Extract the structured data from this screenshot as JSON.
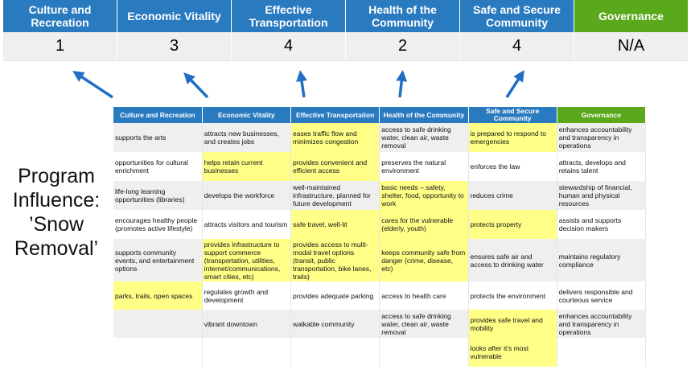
{
  "categories": [
    {
      "label": "Culture and Recreation",
      "score": "1"
    },
    {
      "label": "Economic Vitality",
      "score": "3"
    },
    {
      "label": "Effective Transportation",
      "score": "4"
    },
    {
      "label": "Health of the Community",
      "score": "2"
    },
    {
      "label": "Safe and Secure Community",
      "score": "4"
    },
    {
      "label": "Governance",
      "score": "N/A"
    }
  ],
  "side_title": {
    "line1": "Program",
    "line2": "Influence:",
    "line3": "’Snow",
    "line4": "Removal’"
  },
  "colors": {
    "header_blue": "#2a7ac0",
    "governance_green": "#5aa81c",
    "highlight_yellow": "#ffff88",
    "arrow_blue": "#1f6fc5"
  },
  "table": {
    "headers": [
      "Culture and Recreation",
      "Economic Vitality",
      "Effective Transportation",
      "Health of the Community",
      "Safe and Secure Community",
      "Governance"
    ],
    "rows": [
      {
        "cells": [
          "supports the arts",
          "attracts new businesses, and creates jobs",
          "eases traffic flow and minimizes congestion",
          "access to safe drinking water, clean air, waste removal",
          "is prepared to respond to emergencies",
          "enhances accountability and transparency in operations"
        ],
        "highlighted": [
          false,
          false,
          true,
          false,
          true,
          false
        ]
      },
      {
        "cells": [
          "opportunities for cultural enrichment",
          "helps retain current businesses",
          "provides convenient and efficient access",
          "preserves the natural environment",
          "enforces the law",
          "attracts, develops and retains talent"
        ],
        "highlighted": [
          false,
          true,
          true,
          false,
          false,
          false
        ]
      },
      {
        "cells": [
          "life-long learning opportunities (libraries)",
          "develops the workforce",
          "well-maintained infrastructure, planned for future development",
          "basic needs – safety, shelter, food, opportunity to work",
          "reduces crime",
          "stewardship of financial, human and physical resources"
        ],
        "highlighted": [
          false,
          false,
          false,
          true,
          false,
          false
        ]
      },
      {
        "cells": [
          "encourages healthy people (promotes active lifestyle)",
          "attracts visitors and tourism",
          "safe travel, well-lit",
          "cares for the vulnerable (elderly, youth)",
          "protects property",
          "assists and supports decision makers"
        ],
        "highlighted": [
          false,
          false,
          true,
          true,
          true,
          false
        ]
      },
      {
        "cells": [
          "supports community events, and entertainment options",
          "provides infrastructure to support commerce (transportation, utilities, internet/communications, smart cities, etc)",
          "provides access to multi-modal travel options (transit, public transportation, bike lanes, trails)",
          "keeps community safe from danger (crime, disease, etc)",
          "ensures safe air and access to drinking water",
          "maintains regulatory compliance"
        ],
        "highlighted": [
          false,
          true,
          true,
          true,
          false,
          false
        ]
      },
      {
        "cells": [
          "parks, trails, open spaces",
          "regulates growth and development",
          "provides adequate parking",
          "access to health care",
          "protects the environment",
          "delivers responsible and courteous service"
        ],
        "highlighted": [
          true,
          false,
          false,
          false,
          false,
          false
        ]
      },
      {
        "cells": [
          "",
          "vibrant downtown",
          "walkable community",
          "access to safe drinking water, clean air, waste removal",
          "provides safe travel and mobility",
          "enhances accountability and transparency in operations"
        ],
        "highlighted": [
          false,
          false,
          false,
          false,
          true,
          false
        ]
      },
      {
        "cells": [
          "",
          "",
          "",
          "",
          "looks after it’s most vulnerable",
          ""
        ],
        "highlighted": [
          false,
          false,
          false,
          false,
          true,
          false
        ]
      }
    ]
  }
}
